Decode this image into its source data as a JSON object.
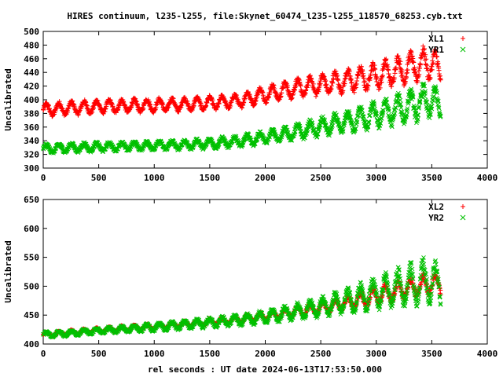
{
  "page": {
    "title": "HIRES continuum, l235-l255, file:Skynet_60474_l235-l255_118570_68253.cyb.txt",
    "xlabel": "rel seconds : UT date 2024-06-13T17:53:50.000"
  },
  "colors": {
    "red": "#ff0000",
    "green": "#00c000",
    "axis": "#000000"
  },
  "chart_data": [
    {
      "type": "scatter",
      "title": "HIRES continuum, l235-l255, file:Skynet_60474_l235-l255_118570_68253.cyb.txt",
      "xlabel": "",
      "ylabel": "Uncalibrated",
      "xlim": [
        0,
        4000
      ],
      "ylim": [
        300,
        500
      ],
      "xticks": [
        0,
        500,
        1000,
        1500,
        2000,
        2500,
        3000,
        3500,
        4000
      ],
      "yticks": [
        300,
        320,
        340,
        360,
        380,
        400,
        420,
        440,
        460,
        480,
        500
      ],
      "grid": false,
      "legend_position": "top-right",
      "series": [
        {
          "name": "XL1",
          "color": "#ff0000",
          "marker": "+",
          "x": [
            0,
            250,
            500,
            750,
            1000,
            1250,
            1500,
            1750,
            2000,
            2250,
            2500,
            2750,
            3000,
            3250,
            3500,
            3580
          ],
          "y": [
            385,
            388,
            390,
            391,
            392,
            393,
            395,
            398,
            408,
            416,
            422,
            428,
            435,
            445,
            455,
            440
          ],
          "spread": [
            12,
            12,
            12,
            12,
            12,
            12,
            12,
            13,
            14,
            16,
            18,
            20,
            23,
            26,
            30,
            25
          ]
        },
        {
          "name": "YR1",
          "color": "#00c000",
          "marker": "x",
          "x": [
            0,
            250,
            500,
            750,
            1000,
            1250,
            1500,
            1750,
            2000,
            2250,
            2500,
            2750,
            3000,
            3250,
            3500,
            3580
          ],
          "y": [
            328,
            330,
            331,
            332,
            333,
            334,
            336,
            339,
            345,
            352,
            360,
            368,
            378,
            388,
            400,
            385
          ],
          "spread": [
            8,
            8,
            8,
            8,
            8,
            8,
            9,
            10,
            11,
            13,
            16,
            19,
            23,
            27,
            32,
            25
          ]
        }
      ]
    },
    {
      "type": "scatter",
      "title": "",
      "xlabel": "rel seconds : UT date 2024-06-13T17:53:50.000",
      "ylabel": "Uncalibrated",
      "xlim": [
        0,
        4000
      ],
      "ylim": [
        400,
        650
      ],
      "xticks": [
        0,
        500,
        1000,
        1500,
        2000,
        2500,
        3000,
        3500,
        4000
      ],
      "yticks": [
        400,
        450,
        500,
        550,
        600,
        650
      ],
      "grid": false,
      "legend_position": "top-right",
      "series": [
        {
          "name": "XL2",
          "color": "#ff0000",
          "marker": "+",
          "x": [
            0,
            250,
            500,
            750,
            1000,
            1250,
            1500,
            1750,
            2000,
            2250,
            2500,
            2750,
            3000,
            3250,
            3500,
            3580
          ],
          "y": [
            416,
            420,
            424,
            427,
            430,
            434,
            438,
            442,
            448,
            455,
            463,
            472,
            483,
            495,
            505,
            500
          ],
          "spread": [
            5,
            5,
            5,
            6,
            6,
            6,
            7,
            8,
            9,
            11,
            13,
            15,
            18,
            20,
            22,
            20
          ]
        },
        {
          "name": "YR2",
          "color": "#00c000",
          "marker": "x",
          "x": [
            0,
            250,
            500,
            750,
            1000,
            1250,
            1500,
            1750,
            2000,
            2250,
            2500,
            2750,
            3000,
            3250,
            3500,
            3580
          ],
          "y": [
            416,
            419,
            423,
            426,
            429,
            433,
            437,
            441,
            447,
            455,
            464,
            475,
            488,
            500,
            512,
            495
          ],
          "spread": [
            6,
            6,
            6,
            7,
            8,
            9,
            10,
            11,
            13,
            16,
            20,
            25,
            32,
            40,
            48,
            35
          ]
        }
      ]
    }
  ]
}
